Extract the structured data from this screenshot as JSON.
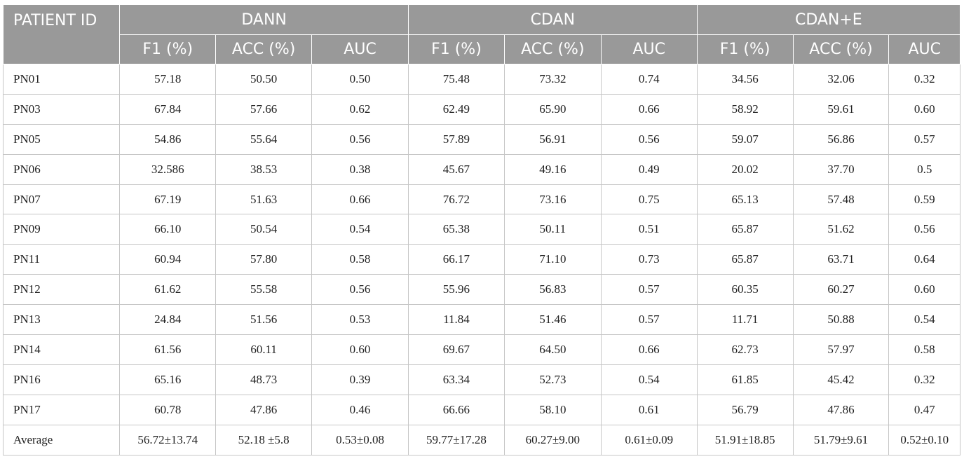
{
  "table": {
    "patient_id_header": "PATIENT ID",
    "groups": [
      "DANN",
      "CDAN",
      "CDAN+E"
    ],
    "sub_headers": [
      "F1 (%)",
      "ACC (%)",
      "AUC",
      "F1 (%)",
      "ACC (%)",
      "AUC",
      "F1 (%)",
      "ACC (%)",
      "AUC"
    ],
    "rows": [
      [
        "PN01",
        "57.18",
        "50.50",
        "0.50",
        "75.48",
        "73.32",
        "0.74",
        "34.56",
        "32.06",
        "0.32"
      ],
      [
        "PN03",
        "67.84",
        "57.66",
        "0.62",
        "62.49",
        "65.90",
        "0.66",
        "58.92",
        "59.61",
        "0.60"
      ],
      [
        "PN05",
        "54.86",
        "55.64",
        "0.56",
        "57.89",
        "56.91",
        "0.56",
        "59.07",
        "56.86",
        "0.57"
      ],
      [
        "PN06",
        "32.586",
        "38.53",
        "0.38",
        "45.67",
        "49.16",
        "0.49",
        "20.02",
        "37.70",
        "0.5"
      ],
      [
        "PN07",
        "67.19",
        "51.63",
        "0.66",
        "76.72",
        "73.16",
        "0.75",
        "65.13",
        "57.48",
        "0.59"
      ],
      [
        "PN09",
        "66.10",
        "50.54",
        "0.54",
        "65.38",
        "50.11",
        "0.51",
        "65.87",
        "51.62",
        "0.56"
      ],
      [
        "PN11",
        "60.94",
        "57.80",
        "0.58",
        "66.17",
        "71.10",
        "0.73",
        "65.87",
        "63.71",
        "0.64"
      ],
      [
        "PN12",
        "61.62",
        "55.58",
        "0.56",
        "55.96",
        "56.83",
        "0.57",
        "60.35",
        "60.27",
        "0.60"
      ],
      [
        "PN13",
        "24.84",
        "51.56",
        "0.53",
        "11.84",
        "51.46",
        "0.57",
        "11.71",
        "50.88",
        "0.54"
      ],
      [
        "PN14",
        "61.56",
        "60.11",
        "0.60",
        "69.67",
        "64.50",
        "0.66",
        "62.73",
        "57.97",
        "0.58"
      ],
      [
        "PN16",
        "65.16",
        "48.73",
        "0.39",
        "63.34",
        "52.73",
        "0.54",
        "61.85",
        "45.42",
        "0.32"
      ],
      [
        "PN17",
        "60.78",
        "47.86",
        "0.46",
        "66.66",
        "58.10",
        "0.61",
        "56.79",
        "47.86",
        "0.47"
      ],
      [
        "Average",
        "56.72±13.74",
        "52.18 ±5.8",
        "0.53±0.08",
        "59.77±17.28",
        "60.27±9.00",
        "0.61±0.09",
        "51.91±18.85",
        "51.79±9.61",
        "0.52±0.10"
      ]
    ],
    "colors": {
      "header_bg": "#999999",
      "header_text": "#ffffff",
      "grid": "#c6c6c6"
    }
  }
}
